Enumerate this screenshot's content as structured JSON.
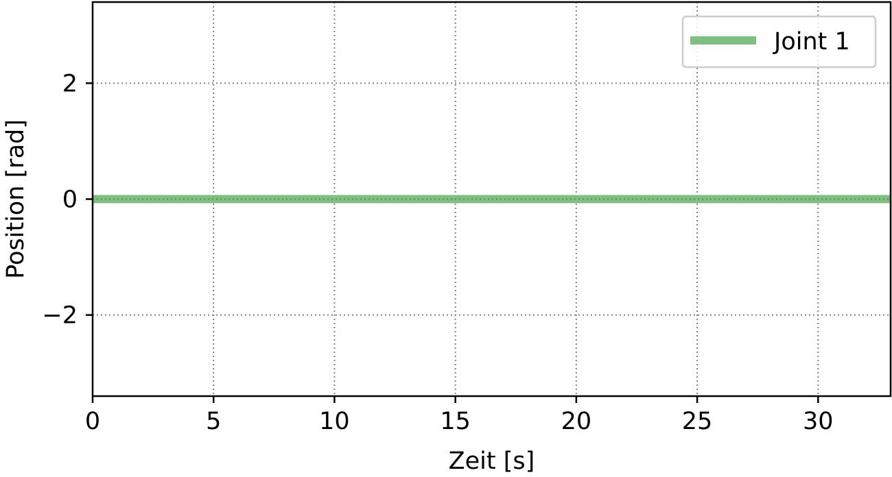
{
  "chart_data": {
    "type": "line",
    "title": "",
    "xlabel": "Zeit [s]",
    "ylabel": "Position [rad]",
    "xlim": [
      0,
      33
    ],
    "ylim": [
      -3.4,
      3.4
    ],
    "xticks": [
      0,
      5,
      10,
      15,
      20,
      25,
      30
    ],
    "yticks": [
      -2,
      0,
      2
    ],
    "xtick_labels": [
      "0",
      "5",
      "10",
      "15",
      "20",
      "25",
      "30"
    ],
    "ytick_labels": [
      "−2",
      "0",
      "2"
    ],
    "grid": true,
    "grid_style": "dotted",
    "legend_position": "top-right",
    "series": [
      {
        "name": "Joint 1",
        "color": "#7fbf7f",
        "x": [
          0,
          5,
          10,
          15,
          20,
          25,
          30,
          33
        ],
        "y": [
          0,
          0,
          0,
          0,
          0,
          0,
          0,
          0
        ]
      }
    ]
  }
}
